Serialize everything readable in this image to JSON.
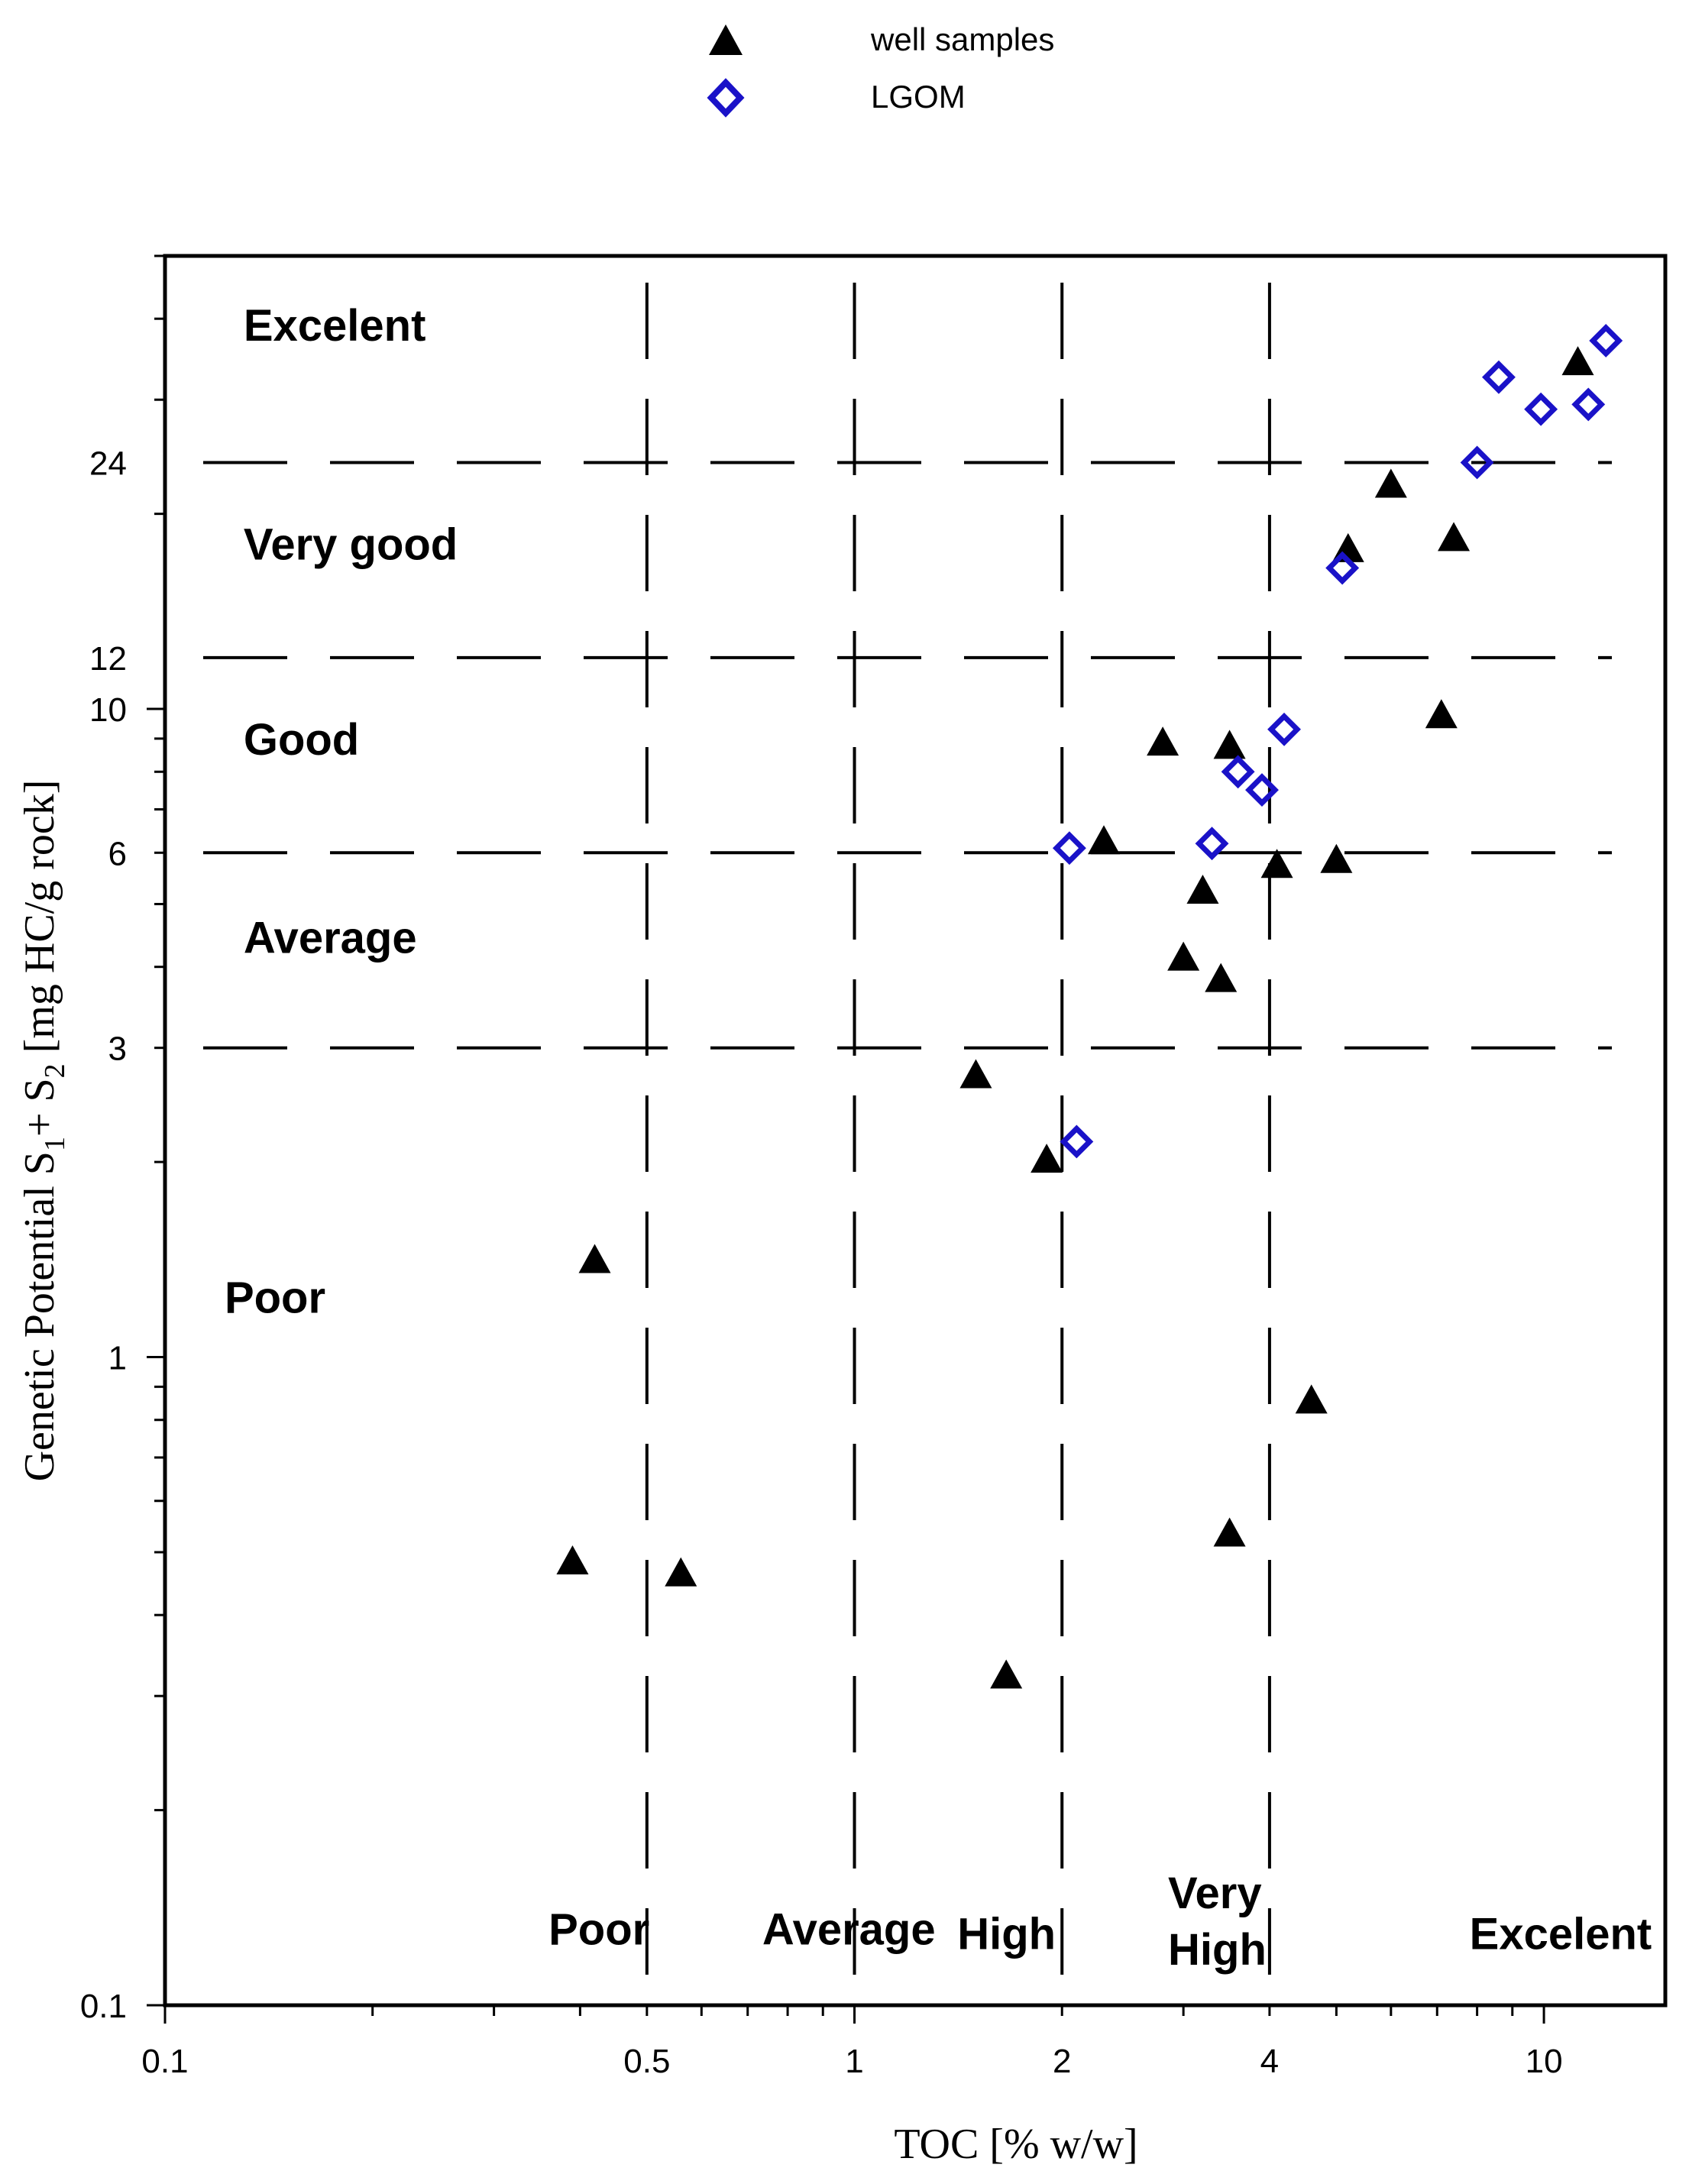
{
  "chart_data": {
    "type": "scatter",
    "x_scale": "log",
    "y_scale": "log",
    "xlim": [
      0.1,
      15
    ],
    "ylim": [
      0.1,
      50
    ],
    "xlabel": "TOC [% w/w]",
    "ylabel_parts": {
      "before1": "Genetic Potential S",
      "sub1": "1",
      "plus": "+ S",
      "sub2": "2",
      "after": " [mg HC/g rock]"
    },
    "x_ticks": [
      {
        "value": 0.1,
        "label": "0.1"
      },
      {
        "value": 0.5,
        "label": "0.5"
      },
      {
        "value": 1,
        "label": "1"
      },
      {
        "value": 2,
        "label": "2"
      },
      {
        "value": 4,
        "label": "4"
      },
      {
        "value": 10,
        "label": "10"
      }
    ],
    "y_ticks": [
      {
        "value": 0.1,
        "label": "0.1"
      },
      {
        "value": 1,
        "label": "1"
      },
      {
        "value": 3,
        "label": "3"
      },
      {
        "value": 6,
        "label": "6"
      },
      {
        "value": 10,
        "label": "10"
      },
      {
        "value": 12,
        "label": "12"
      },
      {
        "value": 24,
        "label": "24"
      }
    ],
    "x_thresholds": [
      0.5,
      1,
      2,
      4
    ],
    "y_thresholds": [
      3,
      6,
      12,
      24
    ],
    "y_class_labels": [
      {
        "label": "Excelent",
        "x": 0.13,
        "y": 37
      },
      {
        "label": "Very good",
        "x": 0.13,
        "y": 17
      },
      {
        "label": "Good",
        "x": 0.13,
        "y": 8.5
      },
      {
        "label": "Average",
        "x": 0.13,
        "y": 4.2
      },
      {
        "label": "Poor",
        "x": 0.122,
        "y": 1.17
      }
    ],
    "x_class_labels": [
      {
        "lines": [
          "Poor"
        ],
        "x": 0.36,
        "y": 0.124
      },
      {
        "lines": [
          "Average"
        ],
        "x": 0.735,
        "y": 0.124
      },
      {
        "lines": [
          "High"
        ],
        "x": 1.41,
        "y": 0.122
      },
      {
        "lines": [
          "Very",
          "High"
        ],
        "x": 2.85,
        "y": 0.128
      }
    ],
    "x_class_label_right": {
      "lines": [
        "Excelent"
      ],
      "x": 7.8,
      "y": 0.122
    },
    "legend_position": "top-center",
    "series": [
      {
        "name": "well samples",
        "marker": "filled-triangle",
        "color": "#000000",
        "points": [
          [
            11.2,
            34
          ],
          [
            6.0,
            22
          ],
          [
            5.2,
            17.5
          ],
          [
            7.4,
            18.2
          ],
          [
            7.1,
            9.7
          ],
          [
            2.8,
            8.8
          ],
          [
            3.5,
            8.7
          ],
          [
            2.3,
            6.2
          ],
          [
            3.2,
            5.2
          ],
          [
            4.1,
            5.7
          ],
          [
            5.0,
            5.8
          ],
          [
            3.0,
            4.1
          ],
          [
            3.4,
            3.8
          ],
          [
            1.5,
            2.7
          ],
          [
            1.9,
            2.0
          ],
          [
            0.42,
            1.4
          ],
          [
            4.6,
            0.85
          ],
          [
            3.5,
            0.53
          ],
          [
            0.39,
            0.48
          ],
          [
            0.56,
            0.46
          ],
          [
            1.66,
            0.32
          ]
        ]
      },
      {
        "name": "LGOM",
        "marker": "open-diamond",
        "color": "#1a12c8",
        "points": [
          [
            12.3,
            37
          ],
          [
            8.6,
            32.5
          ],
          [
            9.9,
            29
          ],
          [
            11.6,
            29.5
          ],
          [
            8.0,
            24
          ],
          [
            5.1,
            16.5
          ],
          [
            4.2,
            9.3
          ],
          [
            3.6,
            8.0
          ],
          [
            3.9,
            7.5
          ],
          [
            3.3,
            6.2
          ],
          [
            2.05,
            6.1
          ],
          [
            2.1,
            2.15
          ]
        ]
      }
    ]
  }
}
